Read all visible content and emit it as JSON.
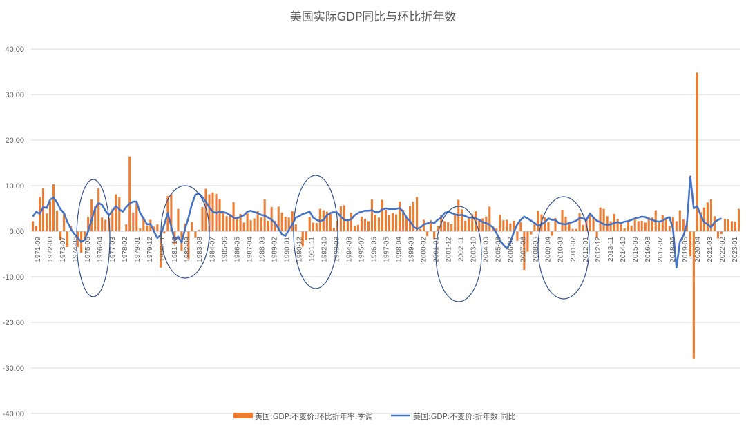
{
  "chart_data": {
    "type": "bar+line",
    "title": "美国实际GDP同比与环比折年数",
    "ylim": [
      -40,
      40
    ],
    "yticks": [
      "40.00",
      "30.00",
      "20.00",
      "10.00",
      "0.00",
      "-10.00",
      "-20.00",
      "-30.00",
      "-40.00"
    ],
    "xtick_labels": [
      "1971-09",
      "1972-08",
      "1973-07",
      "1974-06",
      "1975-05",
      "1976-04",
      "1977-03",
      "1978-02",
      "1979-01",
      "1979-12",
      "1980-11",
      "1981-10",
      "1982-09",
      "1983-08",
      "1984-07",
      "1985-06",
      "1986-05",
      "1987-04",
      "1988-03",
      "1989-02",
      "1990-01",
      "1990-12",
      "1991-11",
      "1992-10",
      "1993-09",
      "1994-08",
      "1995-07",
      "1996-06",
      "1997-05",
      "1998-04",
      "1999-03",
      "2000-02",
      "2001-01",
      "2001-12",
      "2002-11",
      "2003-10",
      "2004-09",
      "2005-08",
      "2006-07",
      "2007-06",
      "2008-05",
      "2009-04",
      "2010-03",
      "2011-02",
      "2012-01",
      "2012-12",
      "2013-11",
      "2014-10",
      "2015-09",
      "2016-08",
      "2017-07",
      "2018-06",
      "2019-05",
      "2020-04",
      "2021-03",
      "2022-02",
      "2023-01"
    ],
    "grid": true,
    "legend_position": "bottom",
    "series": [
      {
        "name": "美国:GDP:不变价:环比折年率:季调",
        "type": "bar",
        "color": "#ED7D31",
        "values": [
          2.2,
          1.1,
          7.5,
          9.5,
          3.9,
          6.6,
          10.3,
          4.5,
          -2.0,
          3.9,
          -3.5,
          1.1,
          0.0,
          -3.5,
          -4.7,
          -1.8,
          3.1,
          7.0,
          5.5,
          9.4,
          3.0,
          2.5,
          2.9,
          4.8,
          8.1,
          7.5,
          0.0,
          1.5,
          16.4,
          4.1,
          6.3,
          0.6,
          3.0,
          1.2,
          2.5,
          1.0,
          1.5,
          -8.0,
          -0.5,
          7.7,
          8.1,
          -2.9,
          4.9,
          -4.3,
          1.7,
          -6.1,
          2.0,
          -1.5,
          0.3,
          5.3,
          9.3,
          8.1,
          8.5,
          8.2,
          7.1,
          4.0,
          3.3,
          3.8,
          6.4,
          3.1,
          3.8,
          1.9,
          3.9,
          2.4,
          2.8,
          4.5,
          3.0,
          7.0,
          2.3,
          5.3,
          2.3,
          5.4,
          4.1,
          3.2,
          3.0,
          4.4,
          1.5,
          0.0,
          -3.4,
          -1.9,
          3.1,
          1.9,
          1.8,
          4.9,
          4.6,
          4.3,
          3.8,
          0.7,
          2.3,
          5.5,
          5.7,
          2.7,
          4.1,
          1.1,
          1.4,
          3.2,
          2.7,
          2.2,
          7.0,
          3.6,
          3.0,
          6.9,
          4.7,
          3.5,
          4.0,
          3.7,
          6.5,
          4.7,
          3.2,
          5.5,
          6.5,
          7.5,
          0.5,
          2.5,
          -1.1,
          2.4,
          -1.6,
          1.1,
          3.5,
          2.2,
          2.0,
          1.6,
          3.8,
          6.9,
          4.8,
          2.3,
          3.0,
          3.7,
          4.4,
          2.3,
          2.8,
          3.2,
          5.4,
          1.0,
          0.6,
          3.6,
          2.4,
          2.5,
          1.7,
          2.3,
          -2.1,
          2.0,
          -8.5,
          -4.5,
          -0.7,
          1.5,
          4.5,
          3.7,
          3.0,
          2.0,
          -1.0,
          2.9,
          -0.1,
          4.7,
          3.2,
          1.7,
          0.5,
          0.5,
          4.0,
          1.4,
          2.7,
          3.5,
          3.2,
          -1.4,
          5.2,
          4.9,
          3.3,
          2.2,
          3.8,
          2.7,
          1.5,
          0.6,
          2.4,
          1.2,
          2.9,
          2.2,
          2.3,
          1.9,
          3.1,
          3.0,
          4.6,
          2.3,
          3.5,
          2.9,
          1.1,
          3.1,
          2.2,
          4.6,
          2.6,
          1.8,
          -5.5,
          -28.0,
          34.8,
          4.2,
          5.2,
          6.3,
          7.0,
          3.3,
          -1.6,
          -0.6,
          2.7,
          2.6,
          2.2,
          2.1,
          4.9
        ]
      },
      {
        "name": "美国:GDP:不变价:折年数:同比",
        "type": "line",
        "color": "#4472C4",
        "values": [
          3.2,
          4.3,
          3.8,
          5.3,
          5.1,
          6.9,
          7.4,
          6.3,
          4.8,
          4.0,
          2.0,
          0.5,
          -0.6,
          -1.5,
          -2.3,
          -1.9,
          0.0,
          2.5,
          5.0,
          6.2,
          5.8,
          4.5,
          3.5,
          4.5,
          5.5,
          4.8,
          4.3,
          5.3,
          6.1,
          6.5,
          6.5,
          4.0,
          2.8,
          1.5,
          1.6,
          0.0,
          -1.5,
          -0.8,
          1.5,
          4.0,
          1.0,
          -2.0,
          -1.2,
          -2.5,
          0.5,
          3.0,
          6.0,
          8.0,
          8.3,
          7.5,
          6.5,
          5.2,
          4.3,
          4.0,
          4.3,
          4.2,
          4.0,
          3.5,
          3.0,
          2.8,
          3.2,
          3.5,
          4.3,
          4.5,
          4.2,
          4.0,
          3.6,
          3.4,
          3.0,
          2.5,
          1.8,
          0.6,
          -0.7,
          -1.0,
          0.3,
          1.5,
          3.0,
          3.3,
          3.8,
          4.0,
          4.3,
          3.0,
          2.5,
          2.2,
          2.5,
          3.5,
          4.0,
          4.2,
          4.1,
          3.2,
          2.5,
          2.4,
          2.6,
          3.5,
          4.0,
          4.3,
          4.5,
          4.5,
          4.6,
          4.2,
          4.2,
          4.8,
          5.0,
          4.9,
          4.9,
          4.9,
          5.1,
          4.3,
          3.0,
          2.2,
          1.0,
          0.5,
          0.8,
          1.5,
          1.7,
          2.0,
          1.8,
          2.5,
          3.0,
          4.0,
          4.3,
          4.0,
          3.7,
          3.5,
          3.6,
          3.3,
          3.0,
          3.0,
          2.8,
          2.5,
          2.0,
          1.8,
          1.4,
          0.8,
          -0.4,
          -2.0,
          -3.0,
          -3.8,
          -2.5,
          -0.2,
          1.5,
          2.5,
          3.2,
          2.8,
          2.3,
          1.8,
          1.2,
          1.5,
          2.0,
          2.8,
          2.5,
          2.5,
          1.8,
          1.6,
          1.5,
          1.8,
          2.0,
          2.3,
          2.9,
          2.8,
          2.5,
          3.9,
          3.0,
          2.3,
          2.0,
          1.5,
          1.4,
          1.5,
          1.8,
          2.0,
          1.8,
          2.1,
          2.2,
          2.5,
          2.8,
          3.0,
          3.2,
          3.1,
          2.7,
          2.5,
          2.2,
          2.1,
          2.3,
          2.8,
          3.1,
          0.5,
          -8.0,
          -2.3,
          -1.0,
          1.5,
          12.0,
          5.0,
          5.5,
          3.5,
          2.0,
          1.5,
          0.8,
          2.0,
          2.5,
          2.8
        ]
      }
    ],
    "annotations": "ellipses highlighting periods around 1975-76, 1981-83, 1991-92, 2001-03, 2010-11"
  }
}
